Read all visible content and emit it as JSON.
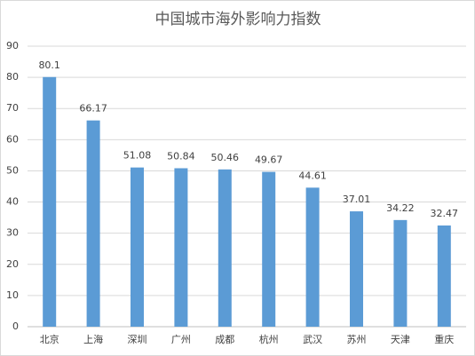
{
  "chart_data": {
    "type": "bar",
    "title": "中国城市海外影响力指数",
    "categories": [
      "北京",
      "上海",
      "深圳",
      "广州",
      "成都",
      "杭州",
      "武汉",
      "苏州",
      "天津",
      "重庆"
    ],
    "values": [
      80.1,
      66.17,
      51.08,
      50.84,
      50.46,
      49.67,
      44.61,
      37.01,
      34.22,
      32.47
    ],
    "color": "#5b9bd5",
    "ylim": [
      0,
      90
    ],
    "yticks": [
      0,
      10,
      20,
      30,
      40,
      50,
      60,
      70,
      80,
      90
    ],
    "grid": true
  }
}
